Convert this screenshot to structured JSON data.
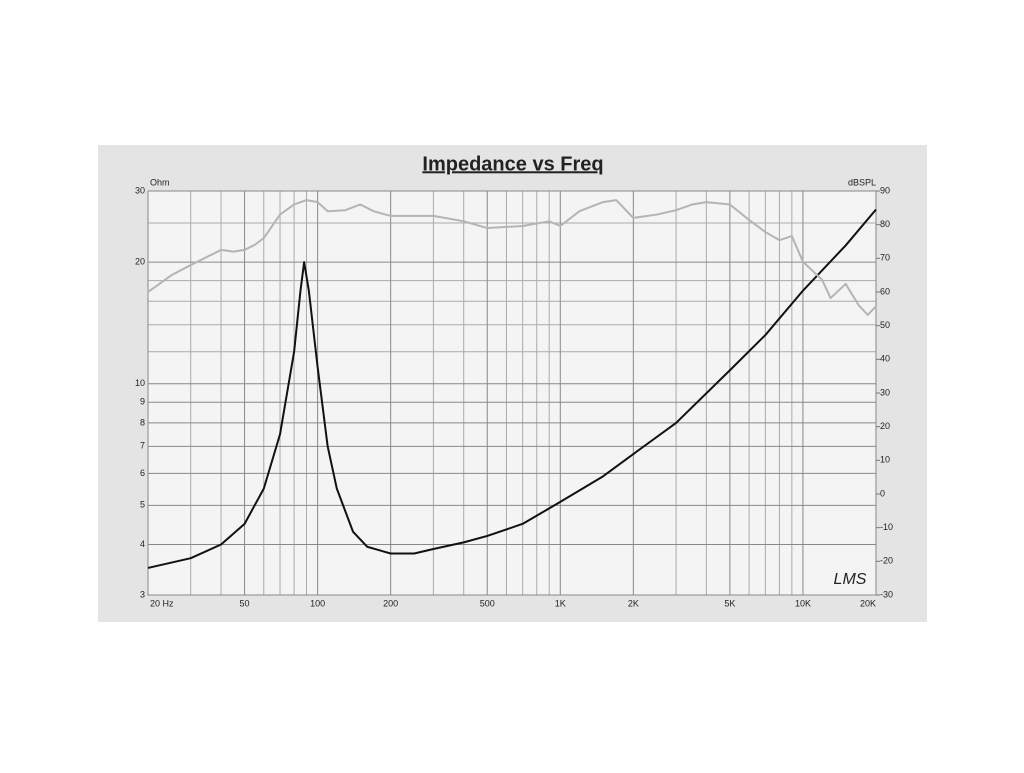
{
  "chart_data": {
    "type": "line",
    "title": "Impedance vs Freq",
    "y_label": "Ohm",
    "y2_label": "dBSPL",
    "annotation": "LMS",
    "x_log": true,
    "y_log": true,
    "grid": true,
    "xlim": [
      20,
      20000
    ],
    "ylim": [
      3,
      30
    ],
    "y2lim": [
      -30,
      90
    ],
    "xticks": [
      {
        "value": 20,
        "label": "20 Hz"
      },
      50,
      100,
      200,
      500,
      {
        "value": 1000,
        "label": "1K"
      },
      {
        "value": 2000,
        "label": "2K"
      },
      {
        "value": 5000,
        "label": "5K"
      },
      {
        "value": 10000,
        "label": "10K"
      },
      {
        "value": 20000,
        "label": "20K"
      }
    ],
    "x_minor_ticks": [
      30,
      40,
      60,
      70,
      80,
      90,
      300,
      400,
      600,
      700,
      800,
      900,
      3000,
      4000,
      6000,
      7000,
      8000,
      9000
    ],
    "yticks": [
      3,
      4,
      5,
      6,
      7,
      8,
      9,
      10,
      20,
      30
    ],
    "y_minor_ticks": [
      12,
      14,
      16,
      18,
      25
    ],
    "y2ticks": [
      -30,
      -20,
      -10,
      0,
      10,
      20,
      30,
      40,
      50,
      60,
      70,
      80,
      90
    ],
    "series": [
      {
        "color": "#111111",
        "axis": "y",
        "x": [
          20,
          30,
          40,
          50,
          60,
          70,
          80,
          85,
          88,
          92,
          100,
          110,
          120,
          140,
          160,
          200,
          250,
          300,
          400,
          500,
          700,
          1000,
          1500,
          2000,
          3000,
          5000,
          7000,
          10000,
          15000,
          20000
        ],
        "values": [
          3.5,
          3.7,
          4.0,
          4.5,
          5.5,
          7.5,
          12,
          17,
          20,
          17,
          11,
          7,
          5.5,
          4.3,
          3.95,
          3.8,
          3.8,
          3.9,
          4.05,
          4.2,
          4.5,
          5.1,
          5.9,
          6.7,
          8.0,
          10.8,
          13.2,
          17,
          22,
          27
        ]
      },
      {
        "color": "#b4b4b4",
        "axis": "y2",
        "x": [
          20,
          25,
          30,
          40,
          45,
          50,
          55,
          60,
          70,
          80,
          90,
          100,
          110,
          130,
          150,
          170,
          200,
          300,
          400,
          500,
          700,
          900,
          1000,
          1200,
          1500,
          1700,
          2000,
          2500,
          3000,
          3500,
          4000,
          5000,
          6000,
          7000,
          8000,
          9000,
          10000,
          12000,
          13000,
          15000,
          17000,
          18500,
          20000
        ],
        "values": [
          60,
          65,
          68,
          72.5,
          72,
          72.5,
          74,
          76,
          83,
          86,
          87.3,
          86.7,
          84,
          84.3,
          86,
          84,
          82.6,
          82.6,
          81,
          79,
          79.6,
          81,
          79.6,
          84,
          86.7,
          87.3,
          82,
          83,
          84.3,
          86,
          86.7,
          86,
          81.4,
          77.8,
          75.4,
          76.6,
          69,
          63.6,
          58.2,
          62.4,
          56,
          53.2,
          55.8
        ]
      }
    ]
  }
}
